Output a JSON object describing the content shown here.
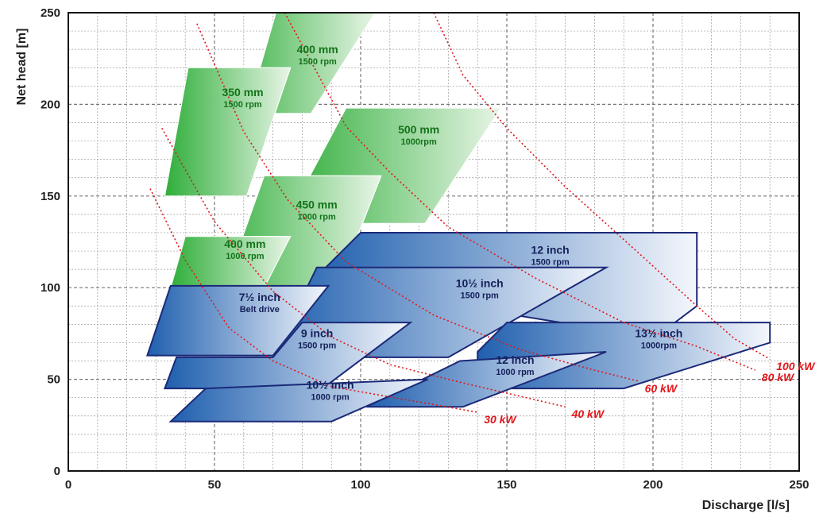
{
  "chart_data": {
    "type": "area",
    "xlabel": "Discharge [l/s]",
    "ylabel": "Net head [m]",
    "xlim": [
      0,
      250
    ],
    "ylim": [
      0,
      250
    ],
    "xticks": [
      0,
      50,
      100,
      150,
      200,
      250
    ],
    "yticks": [
      0,
      50,
      100,
      150,
      200,
      250
    ],
    "grid": true,
    "colors": {
      "green_dark": "#2fae3a",
      "green_light": "#e8f5e6",
      "blue_dark": "#1f5fae",
      "blue_light": "#f4f7fc",
      "outline": "#1b2a78",
      "power_curve": "#e2161b"
    },
    "operating_ranges": [
      {
        "label": "400 mm",
        "sublabel": "1500 rpm",
        "family": "green",
        "polygon": [
          [
            53,
            150
          ],
          [
            71,
            250
          ],
          [
            105,
            250
          ],
          [
            83,
            195
          ],
          [
            70,
            195
          ],
          [
            56,
            150
          ]
        ]
      },
      {
        "label": "350 mm",
        "sublabel": "1500 rpm",
        "family": "green",
        "polygon": [
          [
            33,
            150
          ],
          [
            41,
            220
          ],
          [
            76,
            220
          ],
          [
            61,
            150
          ]
        ]
      },
      {
        "label": "500 mm",
        "sublabel": "1000rpm",
        "family": "green",
        "polygon": [
          [
            74,
            135
          ],
          [
            95,
            198
          ],
          [
            148,
            198
          ],
          [
            122,
            135
          ]
        ]
      },
      {
        "label": "450 mm",
        "sublabel": "1000 rpm",
        "family": "green",
        "polygon": [
          [
            49,
            80
          ],
          [
            67,
            161
          ],
          [
            107,
            161
          ],
          [
            87,
            80
          ]
        ]
      },
      {
        "label": "400 mm",
        "sublabel": "1000 rpm",
        "family": "green",
        "polygon": [
          [
            35,
            100
          ],
          [
            40,
            128
          ],
          [
            76,
            128
          ],
          [
            67,
            100
          ]
        ]
      },
      {
        "label": "12 inch",
        "sublabel": "1500 rpm",
        "family": "blue",
        "polygon": [
          [
            83,
            103
          ],
          [
            100,
            130
          ],
          [
            215,
            130
          ],
          [
            215,
            90
          ],
          [
            205,
            78
          ],
          [
            180,
            78
          ]
        ]
      },
      {
        "label": "10½ inch",
        "sublabel": "1500 rpm",
        "family": "blue",
        "polygon": [
          [
            70,
            62
          ],
          [
            85,
            111
          ],
          [
            184,
            111
          ],
          [
            130,
            62
          ]
        ]
      },
      {
        "label": "7½ inch",
        "sublabel": "Belt drive",
        "family": "blue",
        "polygon": [
          [
            27,
            63
          ],
          [
            35,
            101
          ],
          [
            89,
            101
          ],
          [
            70,
            63
          ]
        ]
      },
      {
        "label": "9 inch",
        "sublabel": "1500 rpm",
        "family": "blue",
        "polygon": [
          [
            33,
            45
          ],
          [
            37,
            62
          ],
          [
            70,
            62
          ],
          [
            80,
            81
          ],
          [
            117,
            81
          ],
          [
            87,
            45
          ]
        ]
      },
      {
        "label": "13½ inch",
        "sublabel": "1000rpm",
        "family": "blue",
        "polygon": [
          [
            140,
            65
          ],
          [
            150,
            81
          ],
          [
            240,
            81
          ],
          [
            240,
            70
          ],
          [
            190,
            45
          ],
          [
            140,
            45
          ]
        ]
      },
      {
        "label": "12 inch",
        "sublabel": "1000 rpm",
        "family": "blue",
        "polygon": [
          [
            102,
            35
          ],
          [
            134,
            60
          ],
          [
            184,
            65
          ],
          [
            135,
            35
          ]
        ]
      },
      {
        "label": "10½ inch",
        "sublabel": "1000 rpm",
        "family": "blue",
        "polygon": [
          [
            35,
            27
          ],
          [
            47,
            45
          ],
          [
            123,
            50
          ],
          [
            90,
            27
          ]
        ]
      }
    ],
    "power_curves": [
      {
        "label": "30 kW",
        "points": [
          [
            28,
            154
          ],
          [
            40,
            115
          ],
          [
            55,
            78
          ],
          [
            70,
            60
          ],
          [
            90,
            46
          ],
          [
            115,
            39
          ],
          [
            140,
            32
          ]
        ]
      },
      {
        "label": "40 kW",
        "points": [
          [
            32,
            187
          ],
          [
            50,
            136
          ],
          [
            70,
            98
          ],
          [
            90,
            73
          ],
          [
            110,
            58
          ],
          [
            135,
            48
          ],
          [
            170,
            35
          ]
        ]
      },
      {
        "label": "60 kW",
        "points": [
          [
            44,
            244
          ],
          [
            60,
            185
          ],
          [
            75,
            148
          ],
          [
            95,
            114
          ],
          [
            125,
            85
          ],
          [
            155,
            66
          ],
          [
            180,
            55
          ],
          [
            195,
            49
          ]
        ]
      },
      {
        "label": "80 kW",
        "points": [
          [
            74,
            250
          ],
          [
            95,
            188
          ],
          [
            110,
            163
          ],
          [
            130,
            133
          ],
          [
            160,
            105
          ],
          [
            190,
            81
          ],
          [
            215,
            68
          ],
          [
            235,
            55
          ]
        ]
      },
      {
        "label": "100 kW",
        "points": [
          [
            125,
            250
          ],
          [
            135,
            216
          ],
          [
            150,
            187
          ],
          [
            170,
            155
          ],
          [
            195,
            119
          ],
          [
            215,
            90
          ],
          [
            228,
            72
          ],
          [
            240,
            61
          ]
        ]
      }
    ],
    "annotations": {
      "power_labels": [
        "30 kW",
        "40 kW",
        "60 kW",
        "80 kW",
        "100 kW"
      ]
    }
  }
}
